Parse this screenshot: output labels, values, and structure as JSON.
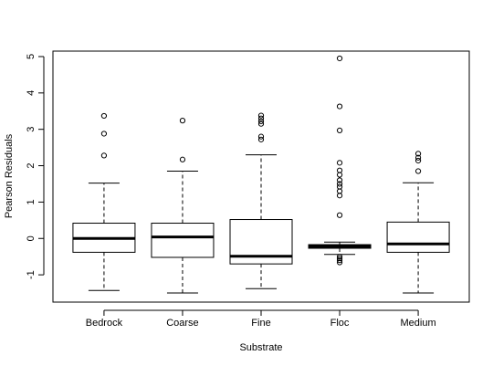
{
  "chart_data": {
    "type": "boxplot",
    "xlabel": "Substrate",
    "ylabel": "Pearson Residuals",
    "ylim": [
      -1.75,
      5.15
    ],
    "yticks": [
      -1,
      0,
      1,
      2,
      3,
      4,
      5
    ],
    "categories": [
      "Bedrock",
      "Coarse",
      "Fine",
      "Floc",
      "Medium"
    ],
    "boxes": [
      {
        "category": "Bedrock",
        "whisker_low": -1.43,
        "q1": -0.38,
        "median": 0.0,
        "q3": 0.42,
        "whisker_high": 1.52,
        "outliers": [
          2.28,
          2.88,
          3.37
        ]
      },
      {
        "category": "Coarse",
        "whisker_low": -1.5,
        "q1": -0.52,
        "median": 0.04,
        "q3": 0.42,
        "whisker_high": 1.85,
        "outliers": [
          2.17,
          3.24
        ]
      },
      {
        "category": "Fine",
        "whisker_low": -1.38,
        "q1": -0.7,
        "median": -0.49,
        "q3": 0.52,
        "whisker_high": 2.3,
        "outliers": [
          2.72,
          2.8,
          3.15,
          3.22,
          3.3,
          3.38
        ]
      },
      {
        "category": "Floc",
        "whisker_low": -0.44,
        "q1": -0.27,
        "median": -0.22,
        "q3": -0.17,
        "whisker_high": -0.1,
        "outliers": [
          -0.5,
          -0.55,
          -0.6,
          -0.66,
          0.64,
          1.18,
          1.3,
          1.42,
          1.5,
          1.6,
          1.75,
          1.87,
          2.08,
          2.97,
          3.63,
          4.95
        ]
      },
      {
        "category": "Medium",
        "whisker_low": -1.5,
        "q1": -0.38,
        "median": -0.15,
        "q3": 0.45,
        "whisker_high": 1.53,
        "outliers": [
          1.85,
          2.14,
          2.22,
          2.33
        ]
      }
    ]
  }
}
